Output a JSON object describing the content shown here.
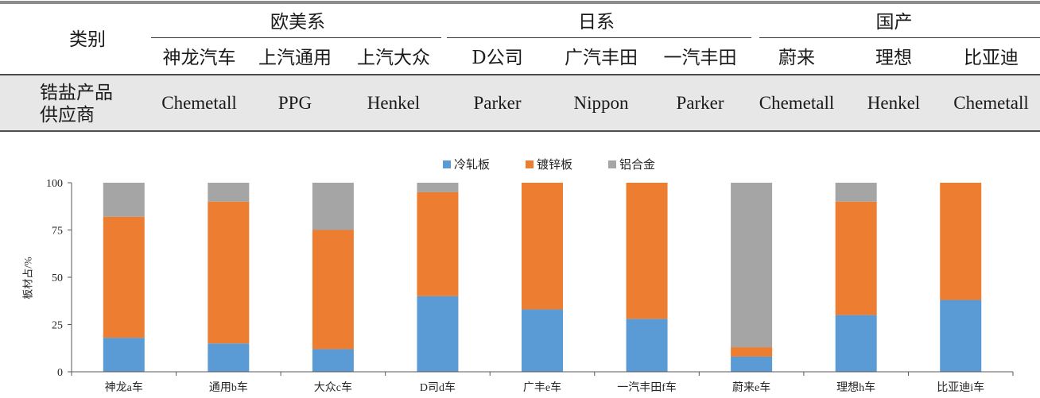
{
  "table": {
    "header_label": "类别",
    "groups": [
      {
        "label": "欧美系",
        "columns": [
          "神龙汽车",
          "上汽通用",
          "上汽大众"
        ]
      },
      {
        "label": "日系",
        "columns": [
          "D公司",
          "广汽丰田",
          "一汽丰田"
        ]
      },
      {
        "label": "国产",
        "columns": [
          "蔚来",
          "理想",
          "比亚迪"
        ]
      }
    ],
    "row_label": [
      "锆盐产品",
      "供应商"
    ],
    "suppliers": [
      "Chemetall",
      "PPG",
      "Henkel",
      "Parker",
      "Nippon",
      "Parker",
      "Chemetall",
      "Henkel",
      "Chemetall"
    ],
    "row_background": "#e7e7e7"
  },
  "chart_data": {
    "type": "bar",
    "stacked": true,
    "ylabel": "板材占/%",
    "categories": [
      "神龙a车",
      "通用b车",
      "大众c车",
      "D司d车",
      "广丰e车",
      "一汽丰田f车",
      "蔚来e车",
      "理想h车",
      "比亚迪i车"
    ],
    "series": [
      {
        "name": "冷轧板",
        "color": "#5b9bd5",
        "values": [
          18,
          15,
          12,
          40,
          33,
          28,
          8,
          30,
          38
        ]
      },
      {
        "name": "镀锌板",
        "color": "#ed7d31",
        "values": [
          64,
          75,
          63,
          55,
          67,
          72,
          5,
          60,
          62
        ]
      },
      {
        "name": "铝合金",
        "color": "#a5a5a5",
        "values": [
          18,
          10,
          25,
          5,
          0,
          0,
          87,
          10,
          0
        ]
      }
    ],
    "ylim": [
      0,
      100
    ],
    "yticks": [
      0,
      25,
      50,
      75,
      100
    ],
    "legend": "top-center",
    "grid": false
  }
}
